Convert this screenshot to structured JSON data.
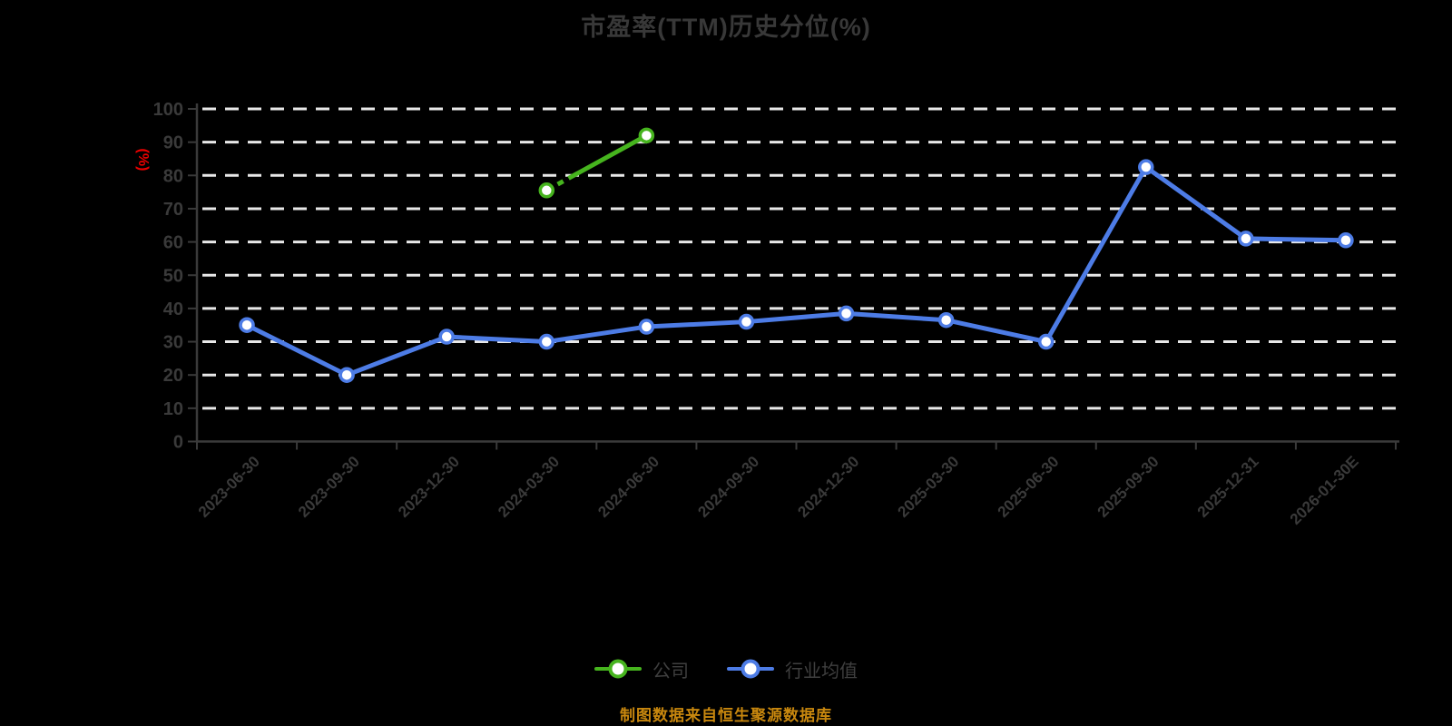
{
  "title": "市盈率(TTM)历史分位(%)",
  "footer": {
    "source_note": "制图数据来自恒生聚源数据库"
  },
  "legend": [
    {
      "label": "公司",
      "color": "#46b41e"
    },
    {
      "label": "行业均值",
      "color": "#4d7ce6"
    }
  ],
  "colors": {
    "background": "#000000",
    "title": "#383838",
    "axis": "#3a3a3a",
    "tick_label": "#3a3a3a",
    "grid": "#e8e8e8",
    "y_axis_name": "#ec0000",
    "footer": "#c8870e",
    "company_green": "#46b41e",
    "industry_blue": "#4d7ce6"
  },
  "chart_data": {
    "type": "line",
    "title": "市盈率(TTM)历史分位(%)",
    "xlabel": "",
    "ylabel": "(%)",
    "ylim": [
      0,
      100
    ],
    "ytick_step": 10,
    "grid": "horizontal dashed white lines on black",
    "legend_position": "bottom",
    "categories": [
      "2023-06-30",
      "2023-09-30",
      "2023-12-30",
      "2024-03-30",
      "2024-06-30",
      "2024-09-30",
      "2024-12-30",
      "2025-03-30",
      "2025-06-30",
      "2025-09-30",
      "2025-12-31",
      "2026-01-30E"
    ],
    "series": [
      {
        "name": "公司",
        "color": "#46b41e",
        "head_dashed": true,
        "values": [
          null,
          null,
          null,
          75.5,
          92,
          null,
          null,
          null,
          null,
          null,
          null,
          null
        ]
      },
      {
        "name": "行业均值",
        "color": "#4d7ce6",
        "head_dashed": false,
        "values": [
          35,
          20,
          31.5,
          30,
          34.5,
          36,
          38.5,
          36.5,
          30,
          82.5,
          61,
          60.5
        ]
      }
    ]
  }
}
